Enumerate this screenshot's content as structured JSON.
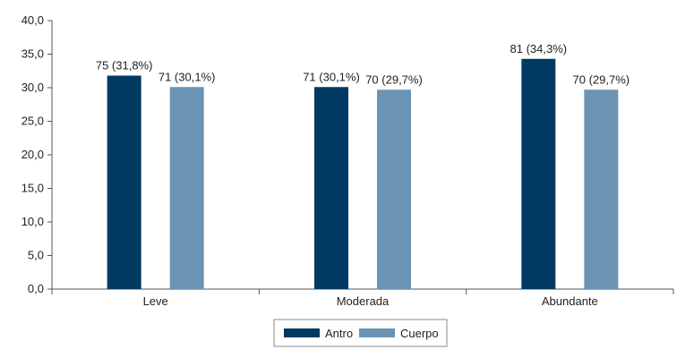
{
  "chart_data": {
    "type": "bar",
    "categories": [
      "Leve",
      "Moderada",
      "Abundante"
    ],
    "series": [
      {
        "name": "Antro",
        "color": "#003a63",
        "values": [
          31.8,
          30.1,
          34.3
        ],
        "labels": [
          "75 (31,8%)",
          "71 (30,1%)",
          "81 (34,3%)"
        ]
      },
      {
        "name": "Cuerpo",
        "color": "#6a93b4",
        "values": [
          30.1,
          29.7,
          29.7
        ],
        "labels": [
          "71 (30,1%)",
          "70 (29,7%)",
          "70 (29,7%)"
        ]
      }
    ],
    "ylim": [
      0,
      40
    ],
    "yticks": [
      "0,0",
      "5,0",
      "10,0",
      "15,0",
      "20,0",
      "25,0",
      "30,0",
      "35,0",
      "40,0"
    ],
    "ytick_values": [
      0,
      5,
      10,
      15,
      20,
      25,
      30,
      35,
      40
    ],
    "grid": false,
    "legend_position": "bottom-center",
    "axis_color": "#555555"
  }
}
